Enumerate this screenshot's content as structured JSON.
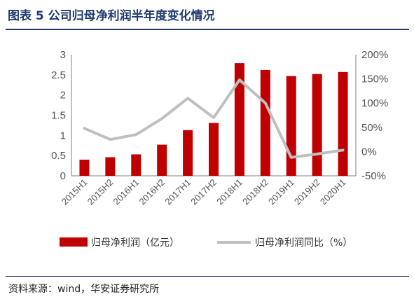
{
  "title": "图表 5 公司归母净利润半年度变化情况",
  "source": "资料来源：wind，华安证券研究所",
  "colors": {
    "bar": "#c00000",
    "line": "#bfbfbf",
    "title": "#1f3a6e"
  },
  "chart_data": {
    "type": "bar",
    "categories": [
      "2015H1",
      "2015H2",
      "2016H1",
      "2016H2",
      "2017H1",
      "2017H2",
      "2018H1",
      "2018H2",
      "2019H1",
      "2019H2",
      "2020H1"
    ],
    "series": [
      {
        "name": "归母净利润（亿元）",
        "type": "bar",
        "axis": "left",
        "values": [
          0.4,
          0.46,
          0.53,
          0.77,
          1.13,
          1.31,
          2.79,
          2.62,
          2.47,
          2.52,
          2.57
        ]
      },
      {
        "name": "归母净利润同比（%）",
        "type": "line",
        "axis": "right",
        "values": [
          48,
          25,
          35,
          68,
          110,
          70,
          148,
          100,
          -12,
          -5,
          3
        ]
      }
    ],
    "y_left": {
      "ylim": [
        0,
        3
      ],
      "ticks": [
        "0",
        "0.5",
        "1",
        "1.5",
        "2",
        "2.5",
        "3"
      ],
      "tick_values": [
        0,
        0.5,
        1,
        1.5,
        2,
        2.5,
        3
      ]
    },
    "y_right": {
      "ylim": [
        -50,
        200
      ],
      "ticks": [
        "-50%",
        "0%",
        "50%",
        "100%",
        "150%",
        "200%"
      ],
      "tick_values": [
        -50,
        0,
        50,
        100,
        150,
        200
      ]
    },
    "grid": false,
    "legend": "bottom"
  }
}
